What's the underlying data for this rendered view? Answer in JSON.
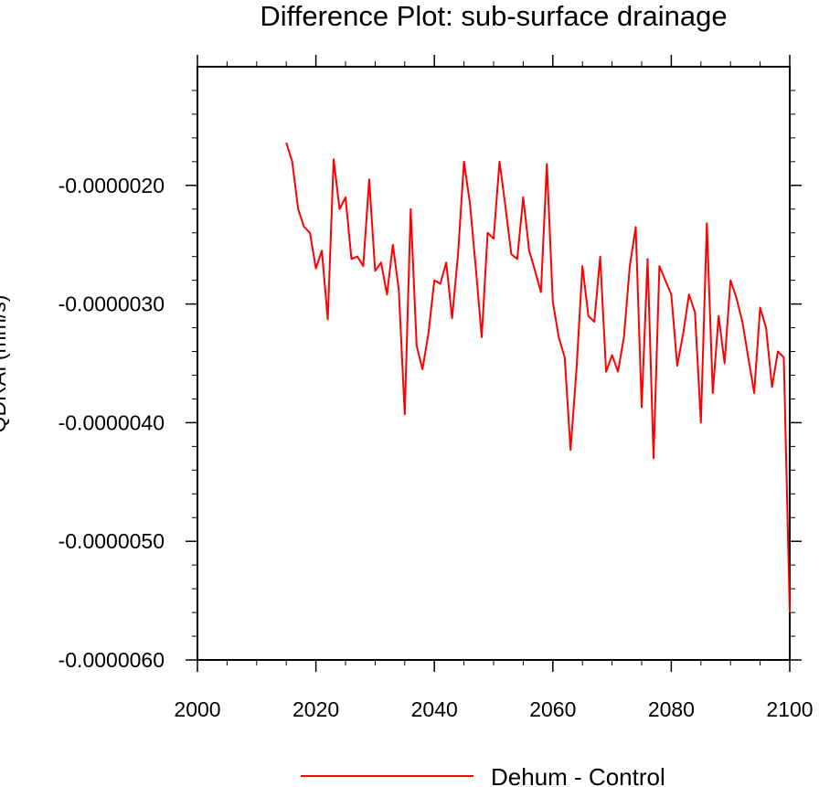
{
  "chart_data": {
    "type": "line",
    "title": "Difference Plot: sub-surface drainage",
    "xlabel": "",
    "ylabel": "QDRAI (mm/s)",
    "xlim": [
      2000,
      2100
    ],
    "ylim": [
      -6e-06,
      -1e-06
    ],
    "x_ticks": [
      2000,
      2020,
      2040,
      2060,
      2080,
      2100
    ],
    "y_ticks": [
      -6e-06,
      -5e-06,
      -4e-06,
      -3e-06,
      -2e-06
    ],
    "y_tick_labels": [
      "-0.0000060",
      "-0.0000050",
      "-0.0000040",
      "-0.0000030",
      "-0.0000020"
    ],
    "grid": false,
    "legend_position": "bottom",
    "series": [
      {
        "name": "Dehum - Control",
        "color": "#ff0000",
        "x": [
          2015,
          2016,
          2017,
          2018,
          2019,
          2020,
          2021,
          2022,
          2023,
          2024,
          2025,
          2026,
          2027,
          2028,
          2029,
          2030,
          2031,
          2032,
          2033,
          2034,
          2035,
          2036,
          2037,
          2038,
          2039,
          2040,
          2041,
          2042,
          2043,
          2044,
          2045,
          2046,
          2047,
          2048,
          2049,
          2050,
          2051,
          2052,
          2053,
          2054,
          2055,
          2056,
          2057,
          2058,
          2059,
          2060,
          2061,
          2062,
          2063,
          2064,
          2065,
          2066,
          2067,
          2068,
          2069,
          2070,
          2071,
          2072,
          2073,
          2074,
          2075,
          2076,
          2077,
          2078,
          2079,
          2080,
          2081,
          2082,
          2083,
          2084,
          2085,
          2086,
          2087,
          2088,
          2089,
          2090,
          2091,
          2092,
          2093,
          2094,
          2095,
          2096,
          2097,
          2098,
          2099,
          2100
        ],
        "values": [
          -1.64e-06,
          -1.8e-06,
          -2.2e-06,
          -2.35e-06,
          -2.4e-06,
          -2.7e-06,
          -2.55e-06,
          -3.13e-06,
          -1.78e-06,
          -2.2e-06,
          -2.1e-06,
          -2.62e-06,
          -2.6e-06,
          -2.68e-06,
          -1.95e-06,
          -2.72e-06,
          -2.65e-06,
          -2.92e-06,
          -2.5e-06,
          -2.88e-06,
          -3.93e-06,
          -2.2e-06,
          -3.35e-06,
          -3.55e-06,
          -3.25e-06,
          -2.8e-06,
          -2.83e-06,
          -2.65e-06,
          -3.12e-06,
          -2.58e-06,
          -1.8e-06,
          -2.15e-06,
          -2.7e-06,
          -3.28e-06,
          -2.4e-06,
          -2.45e-06,
          -1.8e-06,
          -2.18e-06,
          -2.58e-06,
          -2.62e-06,
          -2.1e-06,
          -2.55e-06,
          -2.72e-06,
          -2.9e-06,
          -1.82e-06,
          -2.98e-06,
          -3.28e-06,
          -3.45e-06,
          -4.23e-06,
          -3.55e-06,
          -2.68e-06,
          -3.1e-06,
          -3.15e-06,
          -2.6e-06,
          -3.57e-06,
          -3.43e-06,
          -3.57e-06,
          -3.28e-06,
          -2.68e-06,
          -2.35e-06,
          -3.87e-06,
          -2.62e-06,
          -4.3e-06,
          -2.68e-06,
          -2.8e-06,
          -2.92e-06,
          -3.52e-06,
          -3.25e-06,
          -2.92e-06,
          -3.07e-06,
          -4e-06,
          -2.32e-06,
          -3.75e-06,
          -3.1e-06,
          -3.5e-06,
          -2.8e-06,
          -2.95e-06,
          -3.15e-06,
          -3.45e-06,
          -3.75e-06,
          -3.03e-06,
          -3.2e-06,
          -3.7e-06,
          -3.4e-06,
          -3.45e-06,
          -5.6e-06
        ]
      }
    ]
  }
}
